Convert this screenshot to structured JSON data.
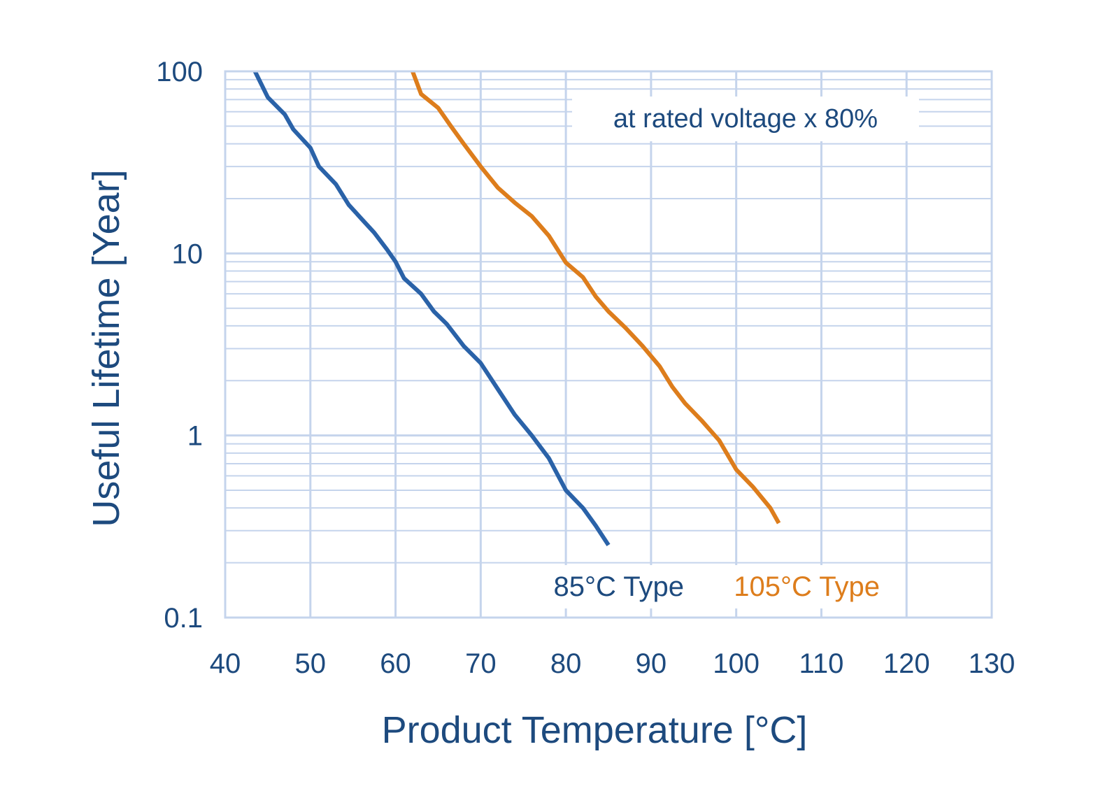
{
  "chart_data": {
    "type": "line",
    "xlabel": "Product Temperature [°C]",
    "ylabel": "Useful Lifetime [Year]",
    "xlim": [
      40,
      130
    ],
    "ylim": [
      0.1,
      100
    ],
    "yscale": "log",
    "x_ticks": [
      "40",
      "50",
      "60",
      "70",
      "80",
      "90",
      "100",
      "110",
      "120",
      "130"
    ],
    "y_ticks": [
      "0.1",
      "1",
      "10",
      "100"
    ],
    "grid": true,
    "annotation": "at rated voltage x 80%",
    "series": [
      {
        "name": "85°C Type",
        "color": "#2a62a8",
        "x": [
          43.5,
          45,
          47,
          48,
          50,
          51,
          53,
          54.5,
          56,
          57.5,
          59,
          60,
          61,
          63,
          64.5,
          66,
          68,
          70,
          72,
          74,
          76,
          78,
          80,
          82,
          83.5,
          85
        ],
        "y": [
          100,
          72,
          58,
          48,
          38,
          30,
          24,
          18.5,
          15.5,
          13,
          10.5,
          9,
          7.3,
          6,
          4.8,
          4.1,
          3.1,
          2.5,
          1.8,
          1.3,
          1.0,
          0.75,
          0.5,
          0.4,
          0.32,
          0.25
        ]
      },
      {
        "name": "105°C Type",
        "color": "#dd7d1c",
        "x": [
          62,
          63,
          65,
          66.5,
          68,
          70,
          72,
          74,
          76,
          78,
          80,
          82,
          83.5,
          85,
          87,
          89,
          91,
          92.5,
          94,
          96,
          98,
          100,
          102,
          104,
          105
        ],
        "y": [
          100,
          75,
          63,
          50,
          40,
          30,
          23,
          19,
          16,
          12.5,
          8.9,
          7.4,
          5.8,
          4.8,
          3.9,
          3.1,
          2.4,
          1.85,
          1.5,
          1.2,
          0.94,
          0.65,
          0.52,
          0.4,
          0.33
        ]
      }
    ]
  },
  "colors": {
    "axis_text": "#1d4a7e",
    "grid": "#c5d4ec",
    "note_text": "#1d4a7e",
    "series_85": "#2a62a8",
    "series_105": "#dd7d1c"
  }
}
